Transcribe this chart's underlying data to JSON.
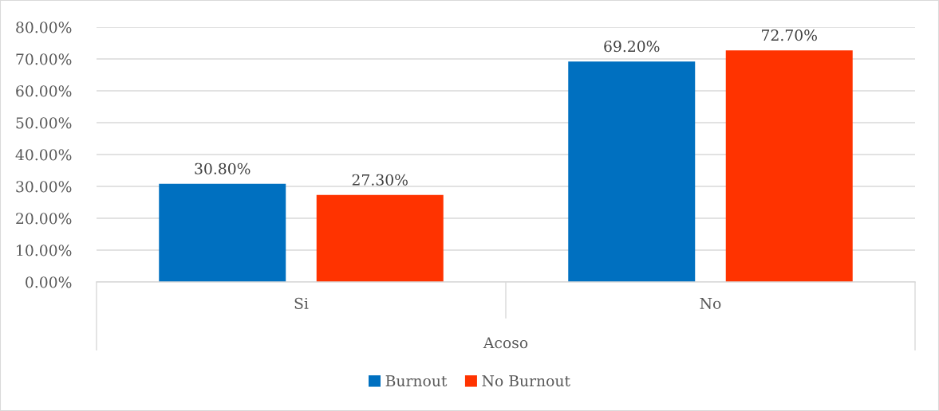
{
  "chart_data": {
    "type": "bar",
    "xlabel": "Acoso",
    "categories": [
      "Si",
      "No"
    ],
    "series": [
      {
        "name": "Burnout",
        "color": "#0070c0",
        "values": [
          30.8,
          69.2
        ],
        "value_labels": [
          "30.80%",
          "69.20%"
        ]
      },
      {
        "name": "No Burnout",
        "color": "#ff3300",
        "values": [
          27.3,
          72.7
        ],
        "value_labels": [
          "27.30%",
          "72.70%"
        ]
      }
    ],
    "ylim": [
      0,
      80
    ],
    "yticks": [
      {
        "value": 0,
        "label": "0.00%"
      },
      {
        "value": 10,
        "label": "10.00%"
      },
      {
        "value": 20,
        "label": "20.00%"
      },
      {
        "value": 30,
        "label": "30.00%"
      },
      {
        "value": 40,
        "label": "40.00%"
      },
      {
        "value": 50,
        "label": "50.00%"
      },
      {
        "value": 60,
        "label": "60.00%"
      },
      {
        "value": 70,
        "label": "70.00%"
      },
      {
        "value": 80,
        "label": "80.00%"
      }
    ],
    "grid": "y",
    "legend": "bottom"
  }
}
